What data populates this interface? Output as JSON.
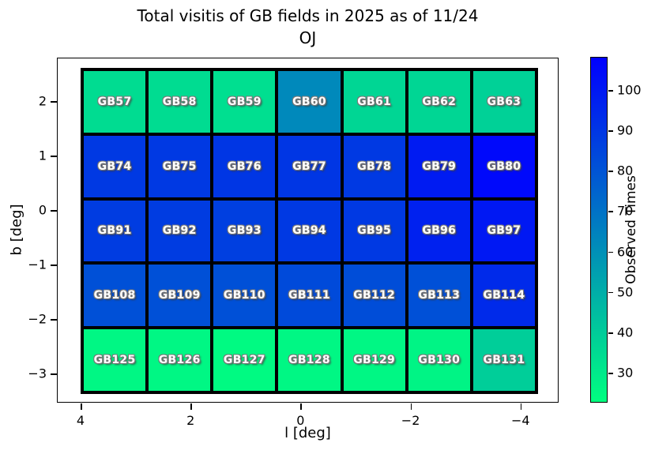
{
  "title": {
    "line1": "Total visitis of GB fields in 2025 as of 11/24",
    "line2": "OJ"
  },
  "chart_data": {
    "type": "heatmap",
    "title": "Total visitis of GB fields in 2025 as of 11/24 OJ",
    "xlabel": "l [deg]",
    "ylabel": "b [deg]",
    "colorbar_label": "Observed Times",
    "colormap": "winter_r",
    "colormap_low_hex": "#00ff80",
    "colormap_high_hex": "#0000ff",
    "scale_min": 22.4,
    "scale_max": 108,
    "x_ticks": [
      4,
      2,
      0,
      -2,
      -4
    ],
    "y_ticks": [
      2,
      1,
      0,
      -1,
      -2,
      -3
    ],
    "colorbar_ticks": [
      100,
      90,
      80,
      70,
      60,
      50,
      40,
      30
    ],
    "grid_extent": {
      "l_left": 4.0,
      "l_right": -4.3,
      "b_top": 2.6,
      "b_bottom": -3.35
    },
    "rows": [
      {
        "cells": [
          {
            "label": "GB57",
            "value": 34
          },
          {
            "label": "GB58",
            "value": 34
          },
          {
            "label": "GB59",
            "value": 33
          },
          {
            "label": "GB60",
            "value": 62
          },
          {
            "label": "GB61",
            "value": 36
          },
          {
            "label": "GB62",
            "value": 36
          },
          {
            "label": "GB63",
            "value": 38
          }
        ]
      },
      {
        "cells": [
          {
            "label": "GB74",
            "value": 89
          },
          {
            "label": "GB75",
            "value": 89
          },
          {
            "label": "GB76",
            "value": 90
          },
          {
            "label": "GB77",
            "value": 90
          },
          {
            "label": "GB78",
            "value": 89
          },
          {
            "label": "GB79",
            "value": 99
          },
          {
            "label": "GB80",
            "value": 105
          }
        ]
      },
      {
        "cells": [
          {
            "label": "GB91",
            "value": 88
          },
          {
            "label": "GB92",
            "value": 88
          },
          {
            "label": "GB93",
            "value": 87
          },
          {
            "label": "GB94",
            "value": 89
          },
          {
            "label": "GB95",
            "value": 89
          },
          {
            "label": "GB96",
            "value": 97
          },
          {
            "label": "GB97",
            "value": 100
          }
        ]
      },
      {
        "cells": [
          {
            "label": "GB108",
            "value": 81
          },
          {
            "label": "GB109",
            "value": 81
          },
          {
            "label": "GB110",
            "value": 81
          },
          {
            "label": "GB111",
            "value": 83
          },
          {
            "label": "GB112",
            "value": 82
          },
          {
            "label": "GB113",
            "value": 81
          },
          {
            "label": "GB114",
            "value": 94
          }
        ]
      },
      {
        "cells": [
          {
            "label": "GB125",
            "value": 25
          },
          {
            "label": "GB126",
            "value": 25
          },
          {
            "label": "GB127",
            "value": 24
          },
          {
            "label": "GB128",
            "value": 25
          },
          {
            "label": "GB129",
            "value": 25
          },
          {
            "label": "GB130",
            "value": 26
          },
          {
            "label": "GB131",
            "value": 39
          }
        ]
      }
    ]
  }
}
